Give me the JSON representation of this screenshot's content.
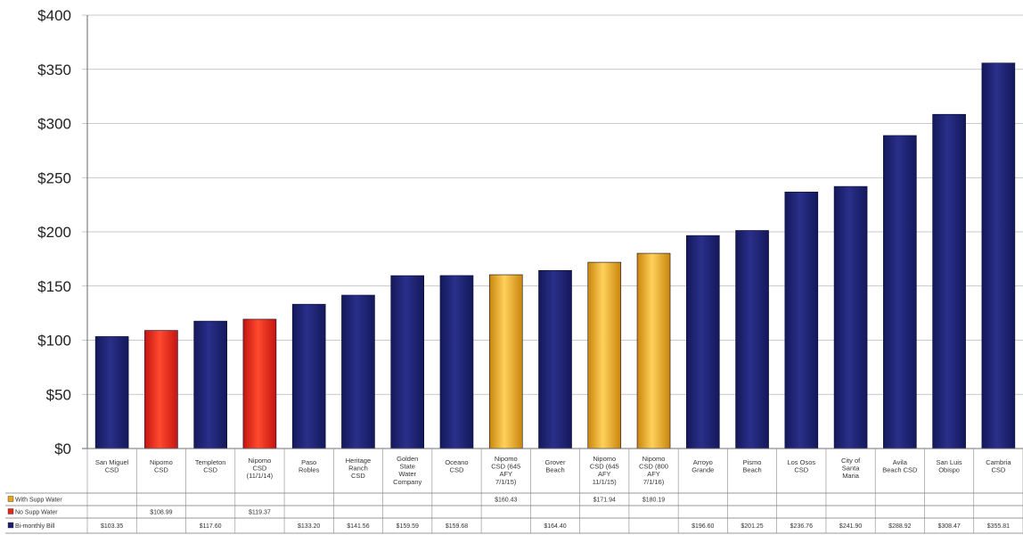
{
  "chart_data": {
    "type": "bar",
    "title": "",
    "xlabel": "",
    "ylabel": "",
    "ylim": [
      0,
      400
    ],
    "yticks": [
      "$0",
      "$50",
      "$100",
      "$150",
      "$200",
      "$250",
      "$300",
      "$350",
      "$400"
    ],
    "grid": true,
    "legend_placement": "left of data table",
    "categories": [
      [
        "San Miguel",
        "CSD"
      ],
      [
        "Nipomo",
        "CSD"
      ],
      [
        "Templeton",
        "CSD"
      ],
      [
        "Nipomo",
        "CSD",
        "(11/1/14)"
      ],
      [
        "Paso",
        "Robles"
      ],
      [
        "Heritage",
        "Ranch",
        "CSD"
      ],
      [
        "Golden",
        "State",
        "Water",
        "Company"
      ],
      [
        "Oceano",
        "CSD"
      ],
      [
        "Nipomo",
        "CSD (645",
        "AFY",
        "7/1/15)"
      ],
      [
        "Grover",
        "Beach"
      ],
      [
        "Nipomo",
        "CSD (645",
        "AFY",
        "11/1/15)"
      ],
      [
        "Nipomo",
        "CSD (800",
        "AFY",
        "7/1/16)"
      ],
      [
        "Arroyo",
        "Grande"
      ],
      [
        "Pismo",
        "Beach"
      ],
      [
        "Los Osos",
        "CSD"
      ],
      [
        "City of",
        "Santa",
        "Maria"
      ],
      [
        "Avila",
        "Beach CSD"
      ],
      [
        "San Luis",
        "Obispo"
      ],
      [
        "Cambria",
        "CSD"
      ]
    ],
    "series": [
      {
        "name": "With Supp Water",
        "color": "#E8A317",
        "values": [
          null,
          null,
          null,
          null,
          null,
          null,
          null,
          null,
          160.43,
          null,
          171.94,
          180.19,
          null,
          null,
          null,
          null,
          null,
          null,
          null
        ],
        "labels": [
          "",
          "",
          "",
          "",
          "",
          "",
          "",
          "",
          "$160.43",
          "",
          "$171.94",
          "$180.19",
          "",
          "",
          "",
          "",
          "",
          "",
          ""
        ]
      },
      {
        "name": "No Supp Water",
        "color": "#E8231B",
        "values": [
          null,
          108.99,
          null,
          119.37,
          null,
          null,
          null,
          null,
          null,
          null,
          null,
          null,
          null,
          null,
          null,
          null,
          null,
          null,
          null
        ],
        "labels": [
          "",
          "$108.99",
          "",
          "$119.37",
          "",
          "",
          "",
          "",
          "",
          "",
          "",
          "",
          "",
          "",
          "",
          "",
          "",
          "",
          ""
        ]
      },
      {
        "name": "Bi-monthly Bill",
        "color": "#1B1F6E",
        "values": [
          103.35,
          null,
          117.6,
          null,
          133.2,
          141.56,
          159.59,
          159.68,
          null,
          164.4,
          null,
          null,
          196.6,
          201.25,
          236.76,
          241.9,
          288.92,
          308.47,
          355.81
        ],
        "labels": [
          "$103.35",
          "",
          "$117.60",
          "",
          "$133.20",
          "$141.56",
          "$159.59",
          "$159.68",
          "",
          "$164.40",
          "",
          "",
          "$196.60",
          "$201.25",
          "$236.76",
          "$241.90",
          "$288.92",
          "$308.47",
          "$355.81"
        ]
      }
    ]
  }
}
